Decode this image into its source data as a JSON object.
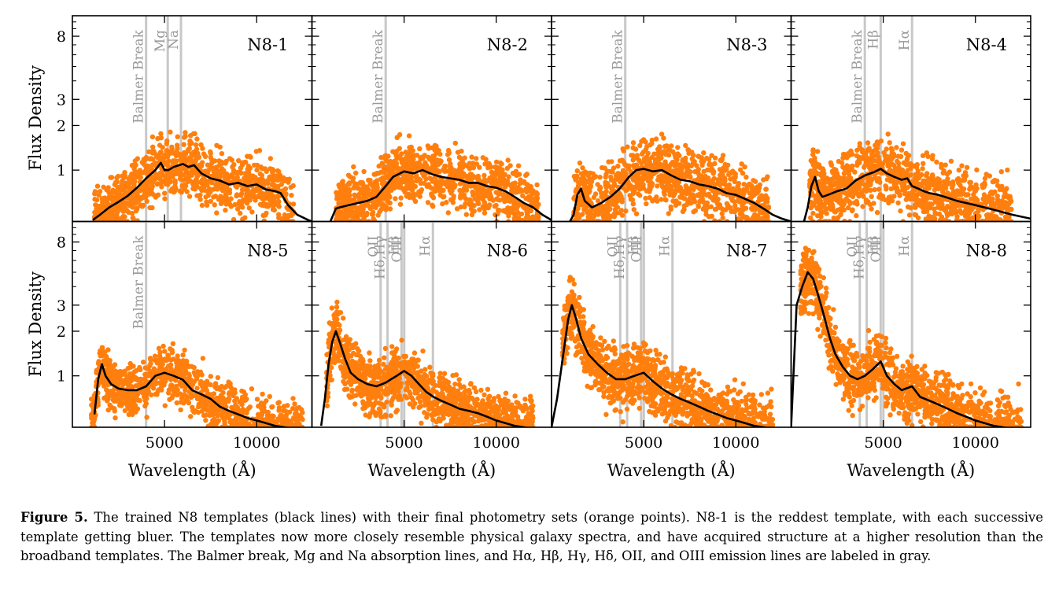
{
  "chart_data": {
    "type": "scatter",
    "layout": "2x4 grid of panels, shared x and y axes",
    "xlabel": "Wavelength (Å)",
    "ylabel": "Flux Density",
    "x_ticks": [
      5000,
      10000
    ],
    "y_ticks": [
      1,
      2,
      3,
      8
    ],
    "xlim": [
      0,
      13000
    ],
    "ylim": [
      0.45,
      11
    ],
    "yscale": "log",
    "point_color": "#ff7f0e",
    "template_color": "#000000",
    "line_marker_color": "#c8c8c8",
    "panels": [
      {
        "name": "N8-1",
        "lines": [
          {
            "label": "Balmer Break",
            "x": 4000
          },
          {
            "label": "Mg",
            "x": 5175
          },
          {
            "label": "Na",
            "x": 5893
          }
        ],
        "template": {
          "x": [
            1100,
            1500,
            2000,
            2500,
            3000,
            3500,
            4000,
            4500,
            4800,
            5000,
            5200,
            5500,
            6000,
            6300,
            6600,
            7000,
            7500,
            8000,
            8500,
            9000,
            9500,
            10000,
            10500,
            11000,
            11300,
            11700,
            12200,
            12800,
            13000
          ],
          "y": [
            0.46,
            0.5,
            0.56,
            0.61,
            0.67,
            0.76,
            0.88,
            1.0,
            1.12,
            1.0,
            1.0,
            1.05,
            1.1,
            1.05,
            1.08,
            0.95,
            0.88,
            0.85,
            0.8,
            0.82,
            0.78,
            0.8,
            0.74,
            0.72,
            0.7,
            0.58,
            0.5,
            0.46,
            0.45
          ]
        },
        "points": {
          "x_range": [
            1200,
            12000
          ],
          "spread": 0.22,
          "count": 1100
        }
      },
      {
        "name": "N8-2",
        "lines": [
          {
            "label": "Balmer Break",
            "x": 4000
          }
        ],
        "template": {
          "x": [
            1000,
            1300,
            1500,
            2000,
            2500,
            3000,
            3500,
            4000,
            4400,
            5000,
            5500,
            6000,
            6500,
            7000,
            7500,
            8000,
            8500,
            9000,
            9500,
            10000,
            10500,
            11000,
            11500,
            12000,
            12500,
            13000
          ],
          "y": [
            0.45,
            0.55,
            0.56,
            0.58,
            0.6,
            0.62,
            0.66,
            0.78,
            0.9,
            0.98,
            0.95,
            1.0,
            0.94,
            0.9,
            0.88,
            0.86,
            0.82,
            0.82,
            0.78,
            0.76,
            0.72,
            0.66,
            0.6,
            0.56,
            0.5,
            0.46
          ]
        },
        "points": {
          "x_range": [
            1300,
            12300
          ],
          "spread": 0.22,
          "count": 1100
        }
      },
      {
        "name": "N8-3",
        "lines": [
          {
            "label": "Balmer Break",
            "x": 4000
          }
        ],
        "template": {
          "x": [
            1000,
            1200,
            1400,
            1600,
            1800,
            2200,
            2700,
            3200,
            3700,
            4200,
            4600,
            5000,
            5500,
            6000,
            6500,
            7000,
            7500,
            8000,
            8500,
            9000,
            9500,
            10000,
            10500,
            11000,
            11500,
            12000,
            12500,
            13000
          ],
          "y": [
            0.45,
            0.5,
            0.68,
            0.75,
            0.62,
            0.56,
            0.6,
            0.66,
            0.75,
            0.9,
            1.0,
            1.02,
            0.98,
            1.0,
            0.92,
            0.86,
            0.84,
            0.8,
            0.78,
            0.75,
            0.7,
            0.68,
            0.64,
            0.6,
            0.55,
            0.5,
            0.47,
            0.45
          ]
        },
        "points": {
          "x_range": [
            1200,
            11800
          ],
          "spread": 0.24,
          "count": 1100
        }
      },
      {
        "name": "N8-4",
        "lines": [
          {
            "label": "Balmer Break",
            "x": 4000
          },
          {
            "label": "Hβ",
            "x": 4861
          },
          {
            "label": "Hα",
            "x": 6563
          }
        ],
        "template": {
          "x": [
            700,
            900,
            1100,
            1300,
            1500,
            1700,
            2000,
            2500,
            3000,
            3500,
            4000,
            4500,
            4861,
            5200,
            5600,
            6000,
            6300,
            6563,
            6900,
            7200,
            7500,
            8000,
            8500,
            9000,
            9500,
            10000,
            11000,
            12000,
            13000
          ],
          "y": [
            0.45,
            0.56,
            0.78,
            0.9,
            0.72,
            0.66,
            0.68,
            0.72,
            0.75,
            0.85,
            0.92,
            0.97,
            1.02,
            0.95,
            0.9,
            0.86,
            0.88,
            0.78,
            0.75,
            0.72,
            0.7,
            0.68,
            0.65,
            0.62,
            0.6,
            0.58,
            0.54,
            0.5,
            0.47
          ]
        },
        "points": {
          "x_range": [
            1000,
            12000
          ],
          "spread": 0.24,
          "count": 1100
        }
      },
      {
        "name": "N8-5",
        "lines": [
          {
            "label": "Balmer Break",
            "x": 4000
          }
        ],
        "template": {
          "x": [
            1200,
            1400,
            1600,
            1800,
            2100,
            2500,
            3000,
            3500,
            4000,
            4500,
            5000,
            5500,
            6000,
            6500,
            7000,
            7500,
            8000,
            8500,
            9000,
            9500,
            10000,
            10500,
            11000,
            11500,
            12000,
            12500,
            13000
          ],
          "y": [
            0.55,
            0.95,
            1.2,
            1.0,
            0.88,
            0.82,
            0.8,
            0.8,
            0.85,
            1.0,
            1.05,
            1.0,
            0.94,
            0.8,
            0.75,
            0.7,
            0.62,
            0.58,
            0.55,
            0.52,
            0.5,
            0.48,
            0.46,
            0.45,
            0.44,
            0.43,
            0.42
          ]
        },
        "points": {
          "x_range": [
            1000,
            12500
          ],
          "spread": 0.2,
          "count": 1100
        }
      },
      {
        "name": "N8-6",
        "lines": [
          {
            "label": "OII",
            "x": 3727
          },
          {
            "label": "Hδ,Hγ",
            "x": 4102
          },
          {
            "label": "Hβ",
            "x": 4861
          },
          {
            "label": "OIII",
            "x": 5007
          },
          {
            "label": "Hα",
            "x": 6563
          }
        ],
        "template": {
          "x": [
            500,
            700,
            900,
            1100,
            1300,
            1500,
            1800,
            2100,
            2500,
            3000,
            3500,
            4000,
            4300,
            4600,
            5000,
            5400,
            5800,
            6200,
            6600,
            7000,
            7500,
            8000,
            8500,
            9000,
            9500,
            10000,
            10500,
            11000,
            11500,
            12000,
            12500
          ],
          "y": [
            0.46,
            0.7,
            1.2,
            1.7,
            2.0,
            1.7,
            1.3,
            1.05,
            0.95,
            0.88,
            0.85,
            0.9,
            0.95,
            1.0,
            1.08,
            1.0,
            0.88,
            0.78,
            0.72,
            0.68,
            0.64,
            0.6,
            0.58,
            0.56,
            0.53,
            0.5,
            0.48,
            0.46,
            0.45,
            0.44,
            0.43
          ]
        },
        "points": {
          "x_range": [
            800,
            12000
          ],
          "spread": 0.22,
          "count": 1300
        }
      },
      {
        "name": "N8-7",
        "lines": [
          {
            "label": "OII",
            "x": 3727
          },
          {
            "label": "Hδ,Hγ",
            "x": 4102
          },
          {
            "label": "Hβ",
            "x": 4861
          },
          {
            "label": "OIII",
            "x": 5007
          },
          {
            "label": "Hα",
            "x": 6563
          }
        ],
        "template": {
          "x": [
            0,
            300,
            600,
            900,
            1100,
            1300,
            1600,
            2000,
            2500,
            3000,
            3500,
            4000,
            4500,
            5000,
            5500,
            6000,
            6500,
            7000,
            7500,
            8000,
            8500,
            9000,
            9500,
            10000,
            10500,
            11000,
            11500,
            12000
          ],
          "y": [
            0.45,
            0.7,
            1.3,
            2.4,
            3.0,
            2.5,
            1.8,
            1.4,
            1.2,
            1.05,
            0.95,
            0.95,
            1.0,
            1.05,
            0.92,
            0.82,
            0.75,
            0.7,
            0.66,
            0.62,
            0.58,
            0.55,
            0.52,
            0.5,
            0.48,
            0.46,
            0.45,
            0.44
          ]
        },
        "points": {
          "x_range": [
            600,
            12000
          ],
          "spread": 0.24,
          "count": 1300
        }
      },
      {
        "name": "N8-8",
        "lines": [
          {
            "label": "OII",
            "x": 3727
          },
          {
            "label": "Hδ,Hγ",
            "x": 4102
          },
          {
            "label": "Hβ",
            "x": 4861
          },
          {
            "label": "OIII",
            "x": 5007
          },
          {
            "label": "Hα",
            "x": 6563
          }
        ],
        "template": {
          "x": [
            0,
            300,
            600,
            900,
            1200,
            1500,
            1800,
            2100,
            2400,
            2800,
            3200,
            3600,
            4000,
            4400,
            4861,
            5200,
            5600,
            6000,
            6563,
            7000,
            7500,
            8000,
            8500,
            9000,
            9500,
            10000,
            10500,
            11000,
            11500,
            12000,
            12500,
            13000
          ],
          "y": [
            0.45,
            3.0,
            4.0,
            5.0,
            4.5,
            3.4,
            2.5,
            1.8,
            1.4,
            1.15,
            1.0,
            0.95,
            1.0,
            1.1,
            1.25,
            1.0,
            0.88,
            0.8,
            0.85,
            0.72,
            0.68,
            0.64,
            0.6,
            0.56,
            0.53,
            0.5,
            0.48,
            0.46,
            0.45,
            0.44,
            0.43,
            0.42
          ]
        },
        "points": {
          "x_range": [
            500,
            12500
          ],
          "spread": 0.24,
          "count": 1300
        }
      }
    ]
  },
  "caption": {
    "label": "Figure 5.",
    "text": "The trained N8 templates (black lines) with their final photometry sets (orange points). N8-1 is the reddest template, with each successive template getting bluer. The templates now more closely resemble physical galaxy spectra, and have acquired structure at a higher resolution than the broadband templates. The Balmer break, Mg and Na absorption lines, and Hα, Hβ, Hγ, Hδ, OII, and OIII emission lines are labeled in gray."
  }
}
